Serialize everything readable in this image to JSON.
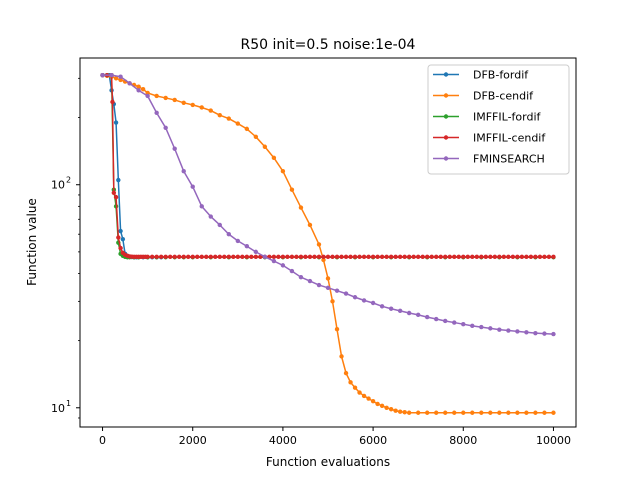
{
  "chart_data": {
    "type": "line",
    "title": "R50 init=0.5 noise:1e-04",
    "xlabel": "Function evaluations",
    "ylabel": "Function value",
    "xlim": [
      -500,
      10500
    ],
    "ylim": [
      8.2,
      370
    ],
    "yscale": "log",
    "grid": false,
    "legend_position": "top-right",
    "xticks": [
      {
        "value": 0,
        "label": "0"
      },
      {
        "value": 2000,
        "label": "2000"
      },
      {
        "value": 4000,
        "label": "4000"
      },
      {
        "value": 6000,
        "label": "6000"
      },
      {
        "value": 8000,
        "label": "8000"
      },
      {
        "value": 10000,
        "label": "10000"
      }
    ],
    "yticks": [
      {
        "value": 10,
        "label": "10",
        "sup": "1"
      },
      {
        "value": 100,
        "label": "10",
        "sup": "2"
      }
    ],
    "series": [
      {
        "name": "DFB-fordif",
        "color": "#1f77b4",
        "x": [
          0,
          100,
          150,
          200,
          250,
          300,
          350,
          400,
          450,
          500,
          550,
          600,
          650,
          700,
          750,
          800,
          900,
          1000,
          1100,
          1200,
          1300
        ],
        "y": [
          310,
          310,
          310,
          265,
          230,
          190,
          105,
          62,
          57,
          49,
          48,
          47.6,
          47.4,
          47.3,
          47.3,
          47.3,
          47.3,
          47.3,
          47.3,
          47.3,
          47.3
        ]
      },
      {
        "name": "DFB-cendif",
        "color": "#ff7f0e",
        "x": [
          0,
          100,
          200,
          300,
          400,
          500,
          600,
          700,
          800,
          900,
          1000,
          1200,
          1400,
          1600,
          1800,
          2000,
          2200,
          2400,
          2600,
          2800,
          3000,
          3200,
          3400,
          3600,
          3800,
          4000,
          4200,
          4400,
          4600,
          4800,
          4900,
          5000,
          5100,
          5200,
          5300,
          5400,
          5500,
          5600,
          5700,
          5800,
          5900,
          6000,
          6100,
          6200,
          6300,
          6400,
          6500,
          6600,
          6700,
          6800,
          7000,
          7200,
          7400,
          7600,
          7800,
          8000,
          8200,
          8400,
          8600,
          8800,
          9000,
          9200,
          9400,
          9600,
          9800,
          10000
        ],
        "y": [
          310,
          308,
          305,
          300,
          295,
          290,
          285,
          280,
          275,
          268,
          258,
          250,
          245,
          240,
          233,
          228,
          222,
          215,
          205,
          198,
          188,
          178,
          164,
          148,
          132,
          115,
          95,
          79,
          66,
          54,
          46,
          38,
          30,
          22.5,
          17,
          14.3,
          13,
          12.3,
          11.7,
          11.3,
          11.0,
          10.7,
          10.4,
          10.2,
          10.0,
          9.85,
          9.7,
          9.6,
          9.55,
          9.5,
          9.5,
          9.5,
          9.5,
          9.5,
          9.5,
          9.5,
          9.5,
          9.5,
          9.5,
          9.5,
          9.5,
          9.5,
          9.5,
          9.5,
          9.5,
          9.5
        ]
      },
      {
        "name": "IMFFIL-fordif",
        "color": "#2ca02c",
        "x": [
          0,
          100,
          200,
          250,
          300,
          350,
          400,
          450,
          500,
          550,
          600,
          700,
          800,
          1000,
          1200,
          1400,
          1600,
          1800,
          2000,
          2400,
          2800,
          3200,
          3600,
          4000,
          4400,
          4800,
          5200,
          5600,
          6000,
          6400,
          6800,
          7200,
          7600,
          8000,
          8400,
          8800,
          9200,
          9600,
          10000
        ],
        "y": [
          310,
          310,
          310,
          95,
          80,
          55,
          49,
          48,
          47.5,
          47.3,
          47.3,
          47.3,
          47.3,
          47.3,
          47.3,
          47.3,
          47.3,
          47.3,
          47.3,
          47.3,
          47.3,
          47.3,
          47.3,
          47.3,
          47.3,
          47.3,
          47.3,
          47.3,
          47.3,
          47.3,
          47.3,
          47.3,
          47.3,
          47.3,
          47.3,
          47.3,
          47.3,
          47.3,
          47.3
        ]
      },
      {
        "name": "IMFFIL-cendif",
        "color": "#d62728",
        "x": [
          0,
          100,
          200,
          220,
          250,
          300,
          350,
          400,
          450,
          500,
          550,
          600,
          650,
          700,
          750,
          800,
          850,
          900,
          950,
          1000,
          1100,
          1200,
          1300,
          1400,
          1500,
          1600,
          1700,
          1800,
          1900,
          2000,
          2100,
          2200,
          2300,
          2400,
          2500,
          2600,
          2700,
          2800,
          2900,
          3000,
          3100,
          3200,
          3300,
          3400,
          3500,
          3600,
          3700,
          3800,
          3900,
          4000,
          4100,
          4200,
          4300,
          4400,
          4500,
          4600,
          4700,
          4800,
          4900,
          5000,
          5100,
          5200,
          5300,
          5400,
          5500,
          5600,
          5700,
          5800,
          5900,
          6000,
          6100,
          6200,
          6300,
          6400,
          6500,
          6600,
          6700,
          6800,
          6900,
          7000,
          7100,
          7200,
          7300,
          7400,
          7500,
          7600,
          7700,
          7800,
          7900,
          8000,
          8100,
          8200,
          8300,
          8400,
          8500,
          8600,
          8700,
          8800,
          8900,
          9000,
          9100,
          9200,
          9300,
          9400,
          9500,
          9600,
          9700,
          9800,
          9900,
          10000
        ],
        "y": [
          310,
          310,
          310,
          235,
          92,
          88,
          58,
          52,
          49.5,
          48.5,
          48,
          47.7,
          47.6,
          47.5,
          47.5,
          47.5,
          47.5,
          47.5,
          47.5,
          47.5,
          47.5,
          47.5,
          47.5,
          47.5,
          47.5,
          47.5,
          47.5,
          47.5,
          47.5,
          47.5,
          47.5,
          47.5,
          47.5,
          47.5,
          47.5,
          47.5,
          47.5,
          47.5,
          47.5,
          47.5,
          47.5,
          47.5,
          47.5,
          47.5,
          47.5,
          47.5,
          47.5,
          47.5,
          47.5,
          47.5,
          47.5,
          47.5,
          47.5,
          47.5,
          47.5,
          47.5,
          47.5,
          47.5,
          47.5,
          47.5,
          47.5,
          47.5,
          47.5,
          47.5,
          47.5,
          47.5,
          47.5,
          47.5,
          47.5,
          47.5,
          47.5,
          47.5,
          47.5,
          47.5,
          47.5,
          47.5,
          47.5,
          47.5,
          47.5,
          47.5,
          47.5,
          47.5,
          47.5,
          47.5,
          47.5,
          47.5,
          47.5,
          47.5,
          47.5,
          47.5,
          47.5,
          47.5,
          47.5,
          47.5,
          47.5,
          47.5,
          47.5,
          47.5,
          47.5,
          47.5,
          47.5,
          47.5,
          47.5,
          47.5,
          47.5,
          47.5,
          47.5,
          47.5,
          47.5,
          47.5
        ]
      },
      {
        "name": "FMINSEARCH",
        "color": "#9467bd",
        "x": [
          0,
          200,
          400,
          600,
          800,
          1000,
          1200,
          1400,
          1600,
          1800,
          2000,
          2200,
          2400,
          2600,
          2800,
          3000,
          3200,
          3400,
          3600,
          3800,
          4000,
          4200,
          4400,
          4600,
          4800,
          5000,
          5200,
          5400,
          5600,
          5800,
          6000,
          6200,
          6400,
          6600,
          6800,
          7000,
          7200,
          7400,
          7600,
          7800,
          8000,
          8200,
          8400,
          8600,
          8800,
          9000,
          9200,
          9400,
          9600,
          9800,
          10000
        ],
        "y": [
          310,
          310,
          305,
          285,
          265,
          250,
          210,
          180,
          145,
          115,
          98,
          80,
          72,
          66,
          60,
          56,
          53,
          50,
          47.5,
          45.5,
          43.5,
          41,
          38.5,
          37,
          35.5,
          34.5,
          33.5,
          32.5,
          31.3,
          30.3,
          29.5,
          28.5,
          27.8,
          27.2,
          26.6,
          26.1,
          25.5,
          25,
          24.5,
          24.1,
          23.7,
          23.3,
          23,
          22.7,
          22.4,
          22.2,
          22,
          21.8,
          21.6,
          21.5,
          21.4
        ]
      }
    ]
  }
}
